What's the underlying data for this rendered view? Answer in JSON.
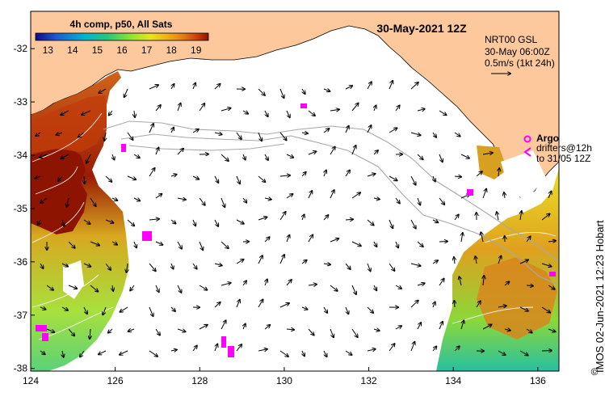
{
  "map": {
    "title": "30-May-2021 12Z",
    "colorbar": {
      "title": "4h comp, p50, All Sats",
      "ticks": [
        "13",
        "14",
        "15",
        "16",
        "17",
        "18",
        "19"
      ],
      "min": 12.5,
      "max": 19.5,
      "colors": [
        "#0a0a8c",
        "#1e5ad2",
        "#00b4d2",
        "#28c878",
        "#8ce632",
        "#e6e61e",
        "#f0b414",
        "#e07814",
        "#c83c0a",
        "#8c1400"
      ]
    },
    "ocean_info": {
      "line1": "NRT00 GSL",
      "line2": "30-May 06:00Z",
      "line3": "0.5m/s (1kt 24h)"
    },
    "legend": {
      "argo_label": "Argo",
      "drifter_line1": "drifters@12h",
      "drifter_line2": "to 31/05 12Z"
    },
    "lat_labels": [
      "-32",
      "-33",
      "-34",
      "-35",
      "-36",
      "-37",
      "-38"
    ],
    "lat_values": [
      -32,
      -33,
      -34,
      -35,
      -36,
      -37,
      -38
    ],
    "lon_labels": [
      "124",
      "126",
      "128",
      "130",
      "132",
      "134",
      "136"
    ],
    "lon_values": [
      124,
      126,
      128,
      130,
      132,
      134,
      136
    ],
    "extent": {
      "lon_min": 124,
      "lon_max": 136.5,
      "lat_min": -38.05,
      "lat_max": -31.3
    },
    "credit": "IMOS 02-Jun-2021 12:23 Hobart",
    "copyright_symbol": "©",
    "land_color": "#fcc89c",
    "argo_color": "#ff00ff"
  }
}
